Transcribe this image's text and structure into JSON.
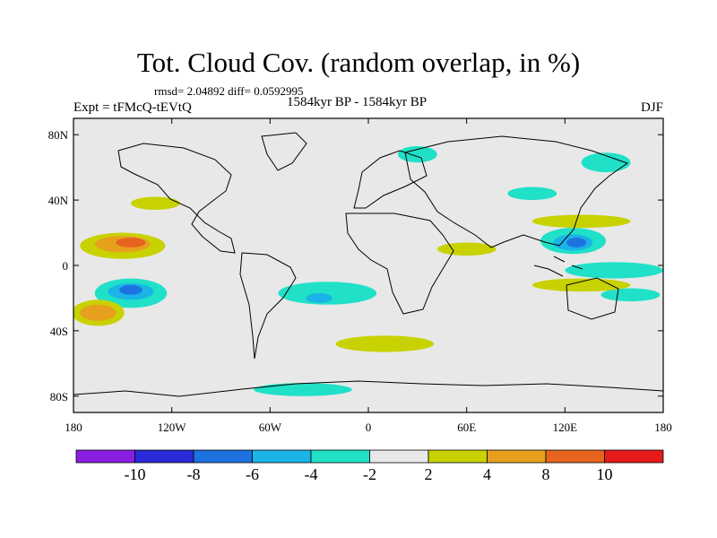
{
  "title": "Tot. Cloud Cov. (random overlap, in %)",
  "stats": "rmsd= 2.04892 diff= 0.0592995",
  "left_label": "Expt = tFMcQ-tEVtQ",
  "center_label": "1584kyr BP - 1584kyr BP",
  "right_label": "DJF",
  "chart_data": {
    "type": "heatmap",
    "projection": "cylindrical-equidistant",
    "xlim": [
      -180,
      180
    ],
    "ylim": [
      -90,
      90
    ],
    "x_ticks": [
      {
        "v": -180,
        "label": "180"
      },
      {
        "v": -120,
        "label": "120W"
      },
      {
        "v": -60,
        "label": "60W"
      },
      {
        "v": 0,
        "label": "0"
      },
      {
        "v": 60,
        "label": "60E"
      },
      {
        "v": 120,
        "label": "120E"
      },
      {
        "v": 180,
        "label": "180"
      }
    ],
    "y_ticks": [
      {
        "v": 80,
        "label": "80N"
      },
      {
        "v": 40,
        "label": "40N"
      },
      {
        "v": 0,
        "label": "0"
      },
      {
        "v": -40,
        "label": "40S"
      },
      {
        "v": -80,
        "label": "80S"
      }
    ],
    "colorbar": {
      "colors": [
        "#8a1ee0",
        "#2a2ad8",
        "#1e72e0",
        "#1ab4e6",
        "#20e0c8",
        "#e8e8e8",
        "#c8d200",
        "#e6a01e",
        "#e6641e",
        "#e61a1a"
      ],
      "labels": [
        {
          "v": -10,
          "label": "-10"
        },
        {
          "v": -8,
          "label": "-8"
        },
        {
          "v": -6,
          "label": "-6"
        },
        {
          "v": -4,
          "label": "-4"
        },
        {
          "v": -2,
          "label": "-2"
        },
        {
          "v": 2,
          "label": "2"
        },
        {
          "v": 4,
          "label": "4"
        },
        {
          "v": 8,
          "label": "8"
        },
        {
          "v": 10,
          "label": "10"
        }
      ]
    },
    "field": [
      {
        "lon": -150,
        "lat": 12,
        "rx": 26,
        "ry": 8,
        "level": "2..4"
      },
      {
        "lon": -150,
        "lat": 13,
        "rx": 17,
        "ry": 5,
        "level": "4..8"
      },
      {
        "lon": -145,
        "lat": 14,
        "rx": 9,
        "ry": 3,
        "level": "8..10"
      },
      {
        "lon": -145,
        "lat": -17,
        "rx": 22,
        "ry": 9,
        "level": "-4..-2"
      },
      {
        "lon": -145,
        "lat": -16,
        "rx": 14,
        "ry": 5,
        "level": "-6..-4"
      },
      {
        "lon": -145,
        "lat": -15,
        "rx": 7,
        "ry": 3,
        "level": "-8..-6"
      },
      {
        "lon": -165,
        "lat": -29,
        "rx": 16,
        "ry": 8,
        "level": "2..4"
      },
      {
        "lon": -165,
        "lat": -29,
        "rx": 11,
        "ry": 5,
        "level": "4..8"
      },
      {
        "lon": 125,
        "lat": 15,
        "rx": 20,
        "ry": 8,
        "level": "-4..-2"
      },
      {
        "lon": 125,
        "lat": 14,
        "rx": 12,
        "ry": 5,
        "level": "-6..-4"
      },
      {
        "lon": 127,
        "lat": 14,
        "rx": 6,
        "ry": 3,
        "level": "-8..-6"
      },
      {
        "lon": 150,
        "lat": -3,
        "rx": 30,
        "ry": 5,
        "level": "-4..-2"
      },
      {
        "lon": 160,
        "lat": -18,
        "rx": 18,
        "ry": 4,
        "level": "-4..-2"
      },
      {
        "lon": -25,
        "lat": -17,
        "rx": 30,
        "ry": 7,
        "level": "-4..-2"
      },
      {
        "lon": -30,
        "lat": -20,
        "rx": 8,
        "ry": 3,
        "level": "-6..-4"
      },
      {
        "lon": 100,
        "lat": 44,
        "rx": 15,
        "ry": 4,
        "level": "-4..-2"
      },
      {
        "lon": 145,
        "lat": 63,
        "rx": 15,
        "ry": 6,
        "level": "-4..-2"
      },
      {
        "lon": 30,
        "lat": 68,
        "rx": 12,
        "ry": 5,
        "level": "-4..-2"
      },
      {
        "lon": 10,
        "lat": -48,
        "rx": 30,
        "ry": 5,
        "level": "2..4"
      },
      {
        "lon": 60,
        "lat": 10,
        "rx": 18,
        "ry": 4,
        "level": "2..4"
      },
      {
        "lon": 130,
        "lat": -12,
        "rx": 30,
        "ry": 4,
        "level": "2..4"
      },
      {
        "lon": -40,
        "lat": -76,
        "rx": 30,
        "ry": 4,
        "level": "-4..-2"
      },
      {
        "lon": 130,
        "lat": 27,
        "rx": 30,
        "ry": 4,
        "level": "2..4"
      },
      {
        "lon": -130,
        "lat": 38,
        "rx": 15,
        "ry": 4,
        "level": "2..4"
      }
    ]
  }
}
